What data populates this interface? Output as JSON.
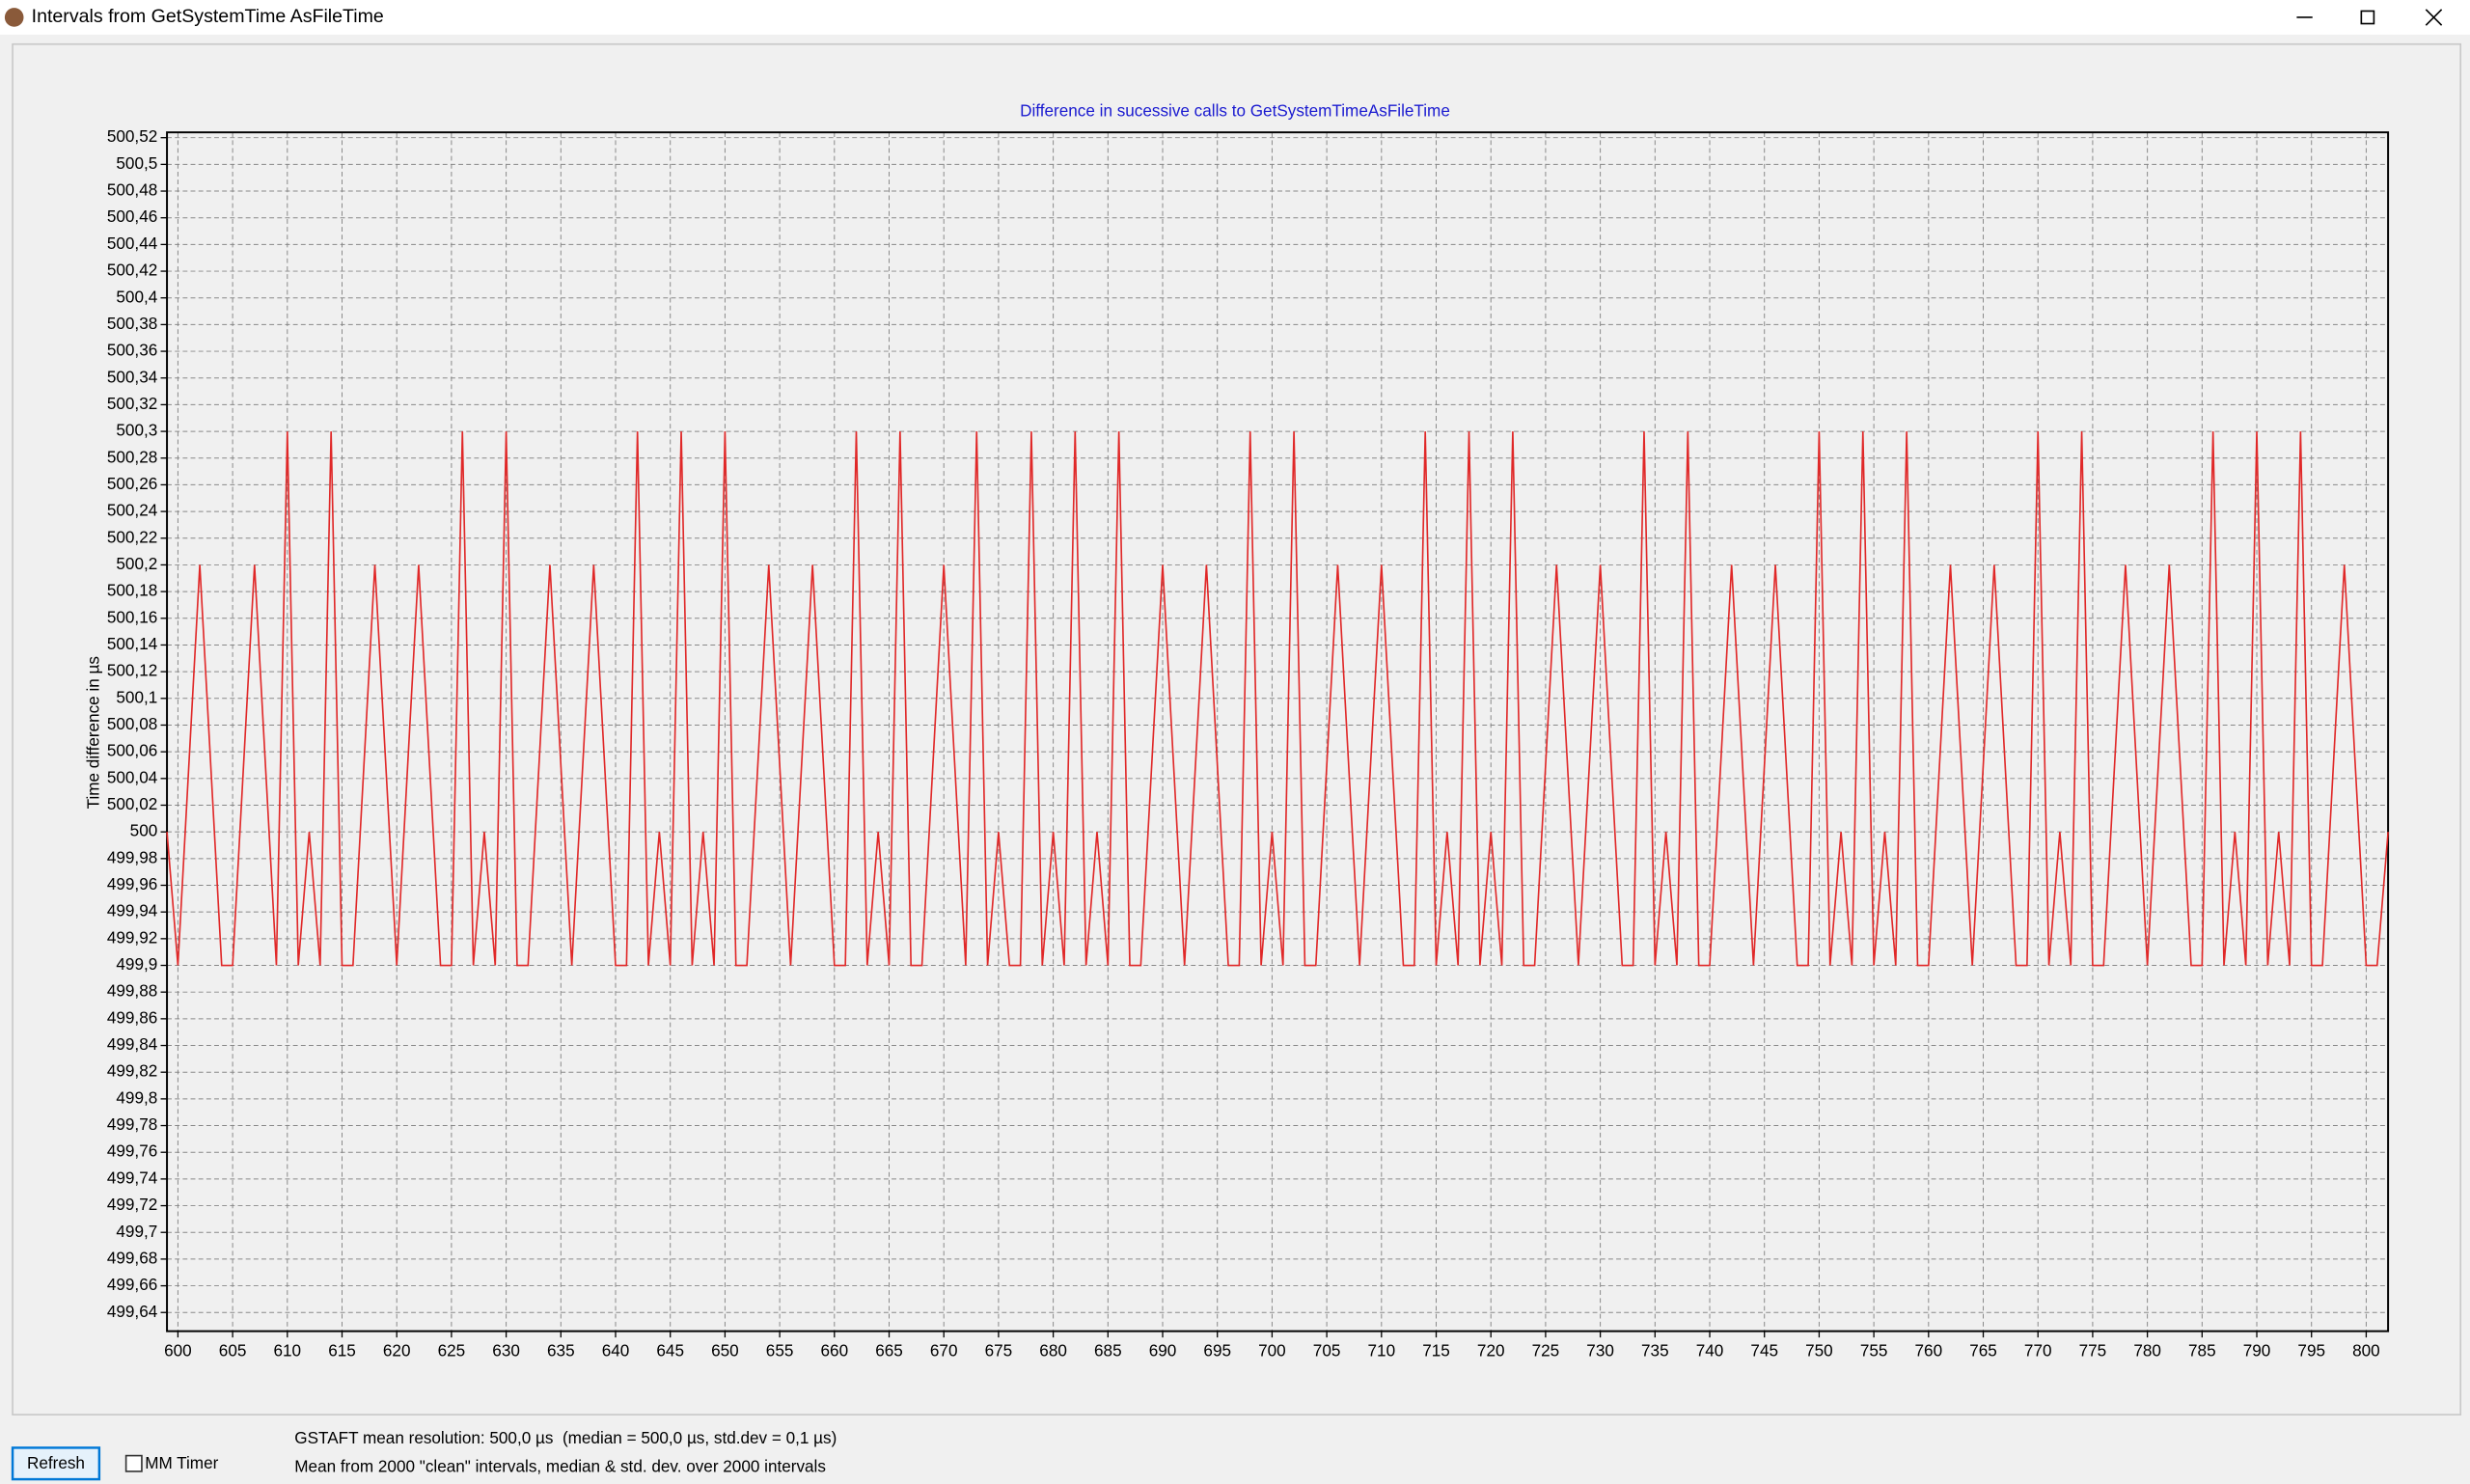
{
  "window": {
    "title": "Intervals from GetSystemTime AsFileTime"
  },
  "chart_data": {
    "type": "line",
    "title": "Difference in sucessive calls to GetSystemTimeAsFileTime",
    "y_label": "Time difference in µs",
    "grid": true,
    "color": "#e02828",
    "xlim": [
      599,
      802
    ],
    "ylim": [
      499.626,
      500.524
    ],
    "xticks": [
      600,
      605,
      610,
      615,
      620,
      625,
      630,
      635,
      640,
      645,
      650,
      655,
      660,
      665,
      670,
      675,
      680,
      685,
      690,
      695,
      700,
      705,
      710,
      715,
      720,
      725,
      730,
      735,
      740,
      745,
      750,
      755,
      760,
      765,
      770,
      775,
      780,
      785,
      790,
      795,
      800
    ],
    "yticks": [
      {
        "value": 499.64,
        "label": "499,64"
      },
      {
        "value": 499.66,
        "label": "499,66"
      },
      {
        "value": 499.68,
        "label": "499,68"
      },
      {
        "value": 499.7,
        "label": "499,7"
      },
      {
        "value": 499.72,
        "label": "499,72"
      },
      {
        "value": 499.74,
        "label": "499,74"
      },
      {
        "value": 499.76,
        "label": "499,76"
      },
      {
        "value": 499.78,
        "label": "499,78"
      },
      {
        "value": 499.8,
        "label": "499,8"
      },
      {
        "value": 499.82,
        "label": "499,82"
      },
      {
        "value": 499.84,
        "label": "499,84"
      },
      {
        "value": 499.86,
        "label": "499,86"
      },
      {
        "value": 499.88,
        "label": "499,88"
      },
      {
        "value": 499.9,
        "label": "499,9"
      },
      {
        "value": 499.92,
        "label": "499,92"
      },
      {
        "value": 499.94,
        "label": "499,94"
      },
      {
        "value": 499.96,
        "label": "499,96"
      },
      {
        "value": 499.98,
        "label": "499,98"
      },
      500,
      {
        "value": 500.02,
        "label": "500,02"
      },
      {
        "value": 500.04,
        "label": "500,04"
      },
      {
        "value": 500.06,
        "label": "500,06"
      },
      {
        "value": 500.08,
        "label": "500,08"
      },
      {
        "value": 500.1,
        "label": "500,1"
      },
      {
        "value": 500.12,
        "label": "500,12"
      },
      {
        "value": 500.14,
        "label": "500,14"
      },
      {
        "value": 500.16,
        "label": "500,16"
      },
      {
        "value": 500.18,
        "label": "500,18"
      },
      {
        "value": 500.2,
        "label": "500,2"
      },
      {
        "value": 500.22,
        "label": "500,22"
      },
      {
        "value": 500.24,
        "label": "500,24"
      },
      {
        "value": 500.26,
        "label": "500,26"
      },
      {
        "value": 500.28,
        "label": "500,28"
      },
      {
        "value": 500.3,
        "label": "500,3"
      },
      {
        "value": 500.32,
        "label": "500,32"
      },
      {
        "value": 500.34,
        "label": "500,34"
      },
      {
        "value": 500.36,
        "label": "500,36"
      },
      {
        "value": 500.38,
        "label": "500,38"
      },
      {
        "value": 500.4,
        "label": "500,4"
      },
      {
        "value": 500.42,
        "label": "500,42"
      },
      {
        "value": 500.44,
        "label": "500,44"
      },
      {
        "value": 500.46,
        "label": "500,46"
      },
      {
        "value": 500.48,
        "label": "500,48"
      },
      {
        "value": 500.5,
        "label": "500,5"
      },
      {
        "value": 500.52,
        "label": "500,52"
      }
    ],
    "x": [
      599,
      600,
      602,
      604,
      605,
      607,
      609,
      610,
      611,
      612,
      613,
      614,
      615,
      616,
      618,
      620,
      622,
      624,
      625,
      626,
      627,
      628,
      629,
      630,
      631,
      632,
      634,
      636,
      638,
      640,
      641,
      642,
      643,
      644,
      645,
      646,
      647,
      648,
      649,
      650,
      651,
      652,
      654,
      656,
      658,
      660,
      661,
      662,
      663,
      664,
      665,
      666,
      667,
      668,
      670,
      672,
      673,
      674,
      675,
      676,
      677,
      678,
      679,
      680,
      681,
      682,
      683,
      684,
      685,
      686,
      687,
      688,
      690,
      692,
      694,
      696,
      697,
      698,
      699,
      700,
      701,
      702,
      703,
      704,
      706,
      708,
      710,
      712,
      713,
      714,
      715,
      716,
      717,
      718,
      719,
      720,
      721,
      722,
      723,
      724,
      726,
      728,
      730,
      732,
      733,
      734,
      735,
      736,
      737,
      738,
      739,
      740,
      742,
      744,
      746,
      748,
      749,
      750,
      751,
      752,
      753,
      754,
      755,
      756,
      757,
      758,
      759,
      760,
      762,
      764,
      766,
      768,
      769,
      770,
      771,
      772,
      773,
      774,
      775,
      776,
      778,
      780,
      782,
      784,
      785,
      786,
      787,
      788,
      789,
      790,
      791,
      792,
      793,
      794,
      795,
      796,
      798,
      800,
      801,
      802
    ],
    "values": [
      500,
      499.9,
      500.2,
      499.9,
      499.9,
      500.2,
      499.9,
      500.3,
      499.9,
      500,
      499.9,
      500.3,
      499.9,
      499.9,
      500.2,
      499.9,
      500.2,
      499.9,
      499.9,
      500.3,
      499.9,
      500,
      499.9,
      500.3,
      499.9,
      499.9,
      500.2,
      499.9,
      500.2,
      499.9,
      499.9,
      500.3,
      499.9,
      500,
      499.9,
      500.3,
      499.9,
      500,
      499.9,
      500.3,
      499.9,
      499.9,
      500.2,
      499.9,
      500.2,
      499.9,
      499.9,
      500.3,
      499.9,
      500,
      499.9,
      500.3,
      499.9,
      499.9,
      500.2,
      499.9,
      500.3,
      499.9,
      500,
      499.9,
      499.9,
      500.3,
      499.9,
      500,
      499.9,
      500.3,
      499.9,
      500,
      499.9,
      500.3,
      499.9,
      499.9,
      500.2,
      499.9,
      500.2,
      499.9,
      499.9,
      500.3,
      499.9,
      500,
      499.9,
      500.3,
      499.9,
      499.9,
      500.2,
      499.9,
      500.2,
      499.9,
      499.9,
      500.3,
      499.9,
      500,
      499.9,
      500.3,
      499.9,
      500,
      499.9,
      500.3,
      499.9,
      499.9,
      500.2,
      499.9,
      500.2,
      499.9,
      499.9,
      500.3,
      499.9,
      500,
      499.9,
      500.3,
      499.9,
      499.9,
      500.2,
      499.9,
      500.2,
      499.9,
      499.9,
      500.3,
      499.9,
      500,
      499.9,
      500.3,
      499.9,
      500,
      499.9,
      500.3,
      499.9,
      499.9,
      500.2,
      499.9,
      500.2,
      499.9,
      499.9,
      500.3,
      499.9,
      500,
      499.9,
      500.3,
      499.9,
      499.9,
      500.2,
      499.9,
      500.2,
      499.9,
      499.9,
      500.3,
      499.9,
      500,
      499.9,
      500.3,
      499.9,
      500,
      499.9,
      500.3,
      499.9,
      499.9,
      500.2,
      499.9,
      499.9,
      500
    ]
  },
  "controls": {
    "refresh": "Refresh",
    "mm_timer": "MM Timer"
  },
  "status": [
    "GSTAFT mean resolution: 500,0 µs  (median = 500,0 µs, std.dev = 0,1 µs)",
    "Mean from 2000 \"clean\" intervals, median & std. dev. over 2000 intervals"
  ]
}
